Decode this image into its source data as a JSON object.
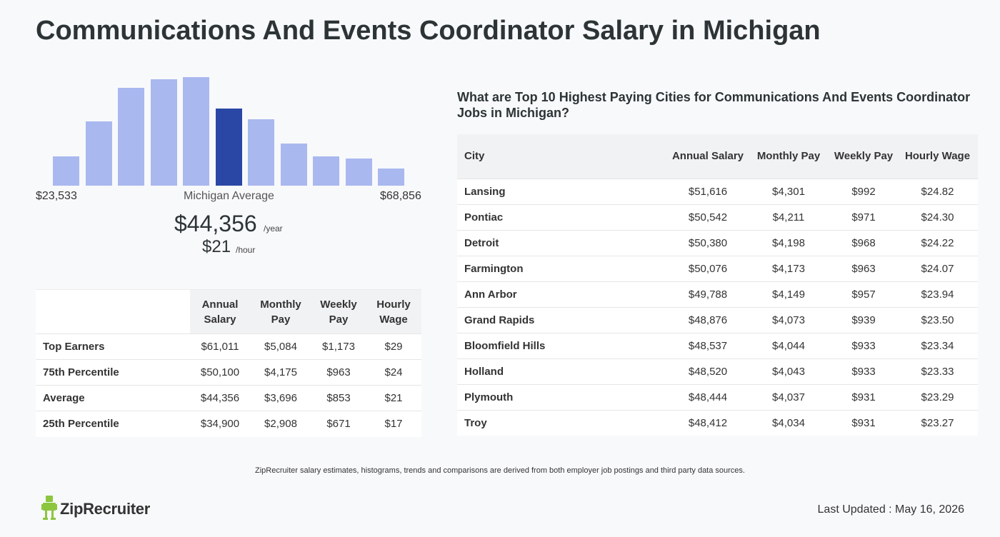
{
  "title": "Communications And Events Coordinator Salary in Michigan",
  "histogram": {
    "bar_levels": [
      0.27,
      0.59,
      0.9,
      0.98,
      1.0,
      0.71,
      0.61,
      0.39,
      0.27,
      0.25,
      0.16
    ],
    "active_index": 5,
    "color": "#a9b8ef",
    "active_color": "#2b47a6",
    "min_label": "$23,533",
    "mid_label": "Michigan Average",
    "max_label": "$68,856"
  },
  "average": {
    "yearly": "$44,356",
    "yearly_unit": "/year",
    "hourly": "$21",
    "hourly_unit": "/hour"
  },
  "percentile_table": {
    "headers": [
      "Annual Salary",
      "Monthly Pay",
      "Weekly Pay",
      "Hourly Wage"
    ],
    "rows": [
      {
        "label": "Top Earners",
        "values": [
          "$61,011",
          "$5,084",
          "$1,173",
          "$29"
        ]
      },
      {
        "label": "75th Percentile",
        "values": [
          "$50,100",
          "$4,175",
          "$963",
          "$24"
        ]
      },
      {
        "label": "Average",
        "values": [
          "$44,356",
          "$3,696",
          "$853",
          "$21"
        ]
      },
      {
        "label": "25th Percentile",
        "values": [
          "$34,900",
          "$2,908",
          "$671",
          "$17"
        ]
      }
    ]
  },
  "city_section": {
    "heading": "What are Top 10 Highest Paying Cities for Communications And Events Coordinator Jobs in Michigan?",
    "headers": [
      "City",
      "Annual Salary",
      "Monthly Pay",
      "Weekly Pay",
      "Hourly Wage"
    ],
    "rows": [
      {
        "city": "Lansing",
        "values": [
          "$51,616",
          "$4,301",
          "$992",
          "$24.82"
        ]
      },
      {
        "city": "Pontiac",
        "values": [
          "$50,542",
          "$4,211",
          "$971",
          "$24.30"
        ]
      },
      {
        "city": "Detroit",
        "values": [
          "$50,380",
          "$4,198",
          "$968",
          "$24.22"
        ]
      },
      {
        "city": "Farmington",
        "values": [
          "$50,076",
          "$4,173",
          "$963",
          "$24.07"
        ]
      },
      {
        "city": "Ann Arbor",
        "values": [
          "$49,788",
          "$4,149",
          "$957",
          "$23.94"
        ]
      },
      {
        "city": "Grand Rapids",
        "values": [
          "$48,876",
          "$4,073",
          "$939",
          "$23.50"
        ]
      },
      {
        "city": "Bloomfield Hills",
        "values": [
          "$48,537",
          "$4,044",
          "$933",
          "$23.34"
        ]
      },
      {
        "city": "Holland",
        "values": [
          "$48,520",
          "$4,043",
          "$933",
          "$23.33"
        ]
      },
      {
        "city": "Plymouth",
        "values": [
          "$48,444",
          "$4,037",
          "$931",
          "$23.29"
        ]
      },
      {
        "city": "Troy",
        "values": [
          "$48,412",
          "$4,034",
          "$931",
          "$23.27"
        ]
      }
    ]
  },
  "footnote": "ZipRecruiter salary estimates, histograms, trends and comparisons are derived from both employer job postings and third party data sources.",
  "logo": {
    "text": "ZipRecruiter",
    "icon": "ziprecruiter-mascot-icon",
    "color": "#8cc63f"
  },
  "last_updated": "Last Updated : May 16, 2026"
}
